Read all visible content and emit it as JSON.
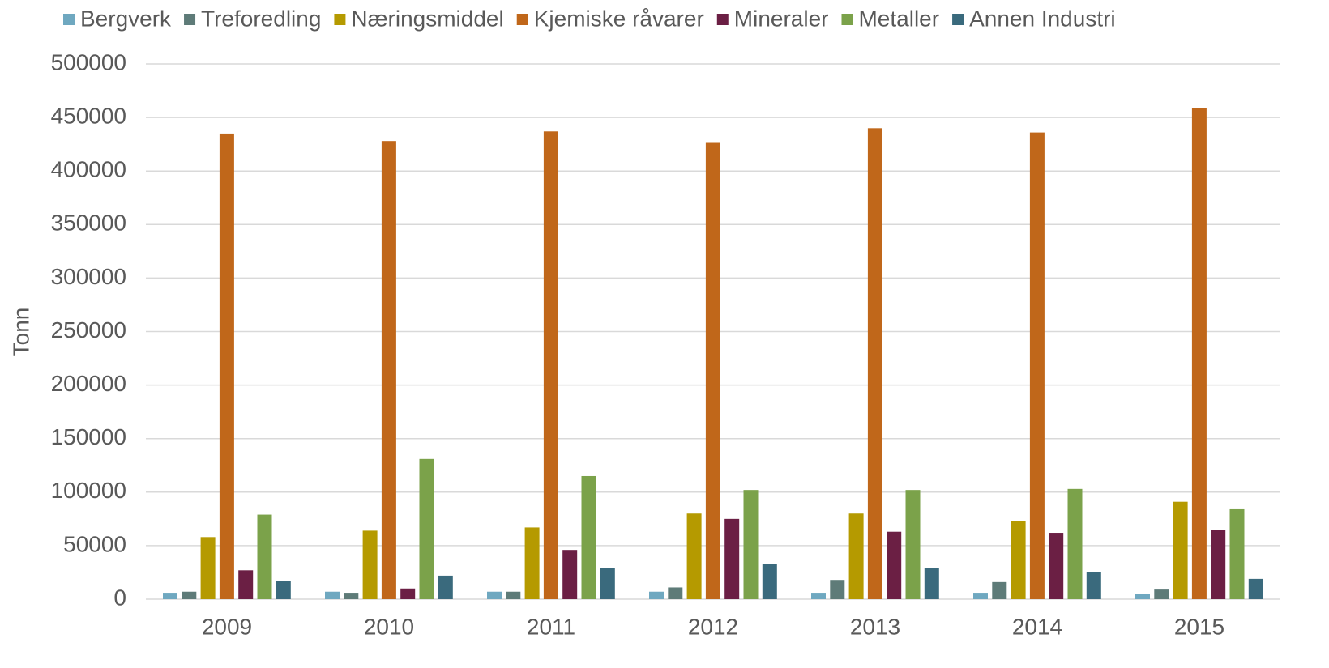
{
  "chart_data": {
    "type": "bar",
    "ylabel": "Tonn",
    "categories": [
      "2009",
      "2010",
      "2011",
      "2012",
      "2013",
      "2014",
      "2015"
    ],
    "series": [
      {
        "name": "Bergverk",
        "color": "#6fa8c0",
        "values": [
          6000,
          7000,
          7000,
          7000,
          6000,
          6000,
          5000
        ]
      },
      {
        "name": "Treforedling",
        "color": "#5e7b78",
        "values": [
          7000,
          6000,
          7000,
          11000,
          18000,
          16000,
          9000
        ]
      },
      {
        "name": "Næringsmiddel",
        "color": "#b59a00",
        "values": [
          58000,
          64000,
          67000,
          80000,
          80000,
          73000,
          91000
        ]
      },
      {
        "name": "Kjemiske råvarer",
        "color": "#c0671a",
        "values": [
          435000,
          428000,
          437000,
          427000,
          440000,
          436000,
          459000
        ]
      },
      {
        "name": "Mineraler",
        "color": "#6b1f44",
        "values": [
          27000,
          10000,
          46000,
          75000,
          63000,
          62000,
          65000
        ]
      },
      {
        "name": "Metaller",
        "color": "#7ba24a",
        "values": [
          79000,
          131000,
          115000,
          102000,
          102000,
          103000,
          84000
        ]
      },
      {
        "name": "Annen Industri",
        "color": "#3a6a7d",
        "values": [
          17000,
          22000,
          29000,
          33000,
          29000,
          25000,
          19000
        ]
      }
    ],
    "ylim": [
      0,
      500000
    ],
    "yticks": [
      0,
      50000,
      100000,
      150000,
      200000,
      250000,
      300000,
      350000,
      400000,
      450000,
      500000
    ],
    "grid": true,
    "legend": "top"
  }
}
